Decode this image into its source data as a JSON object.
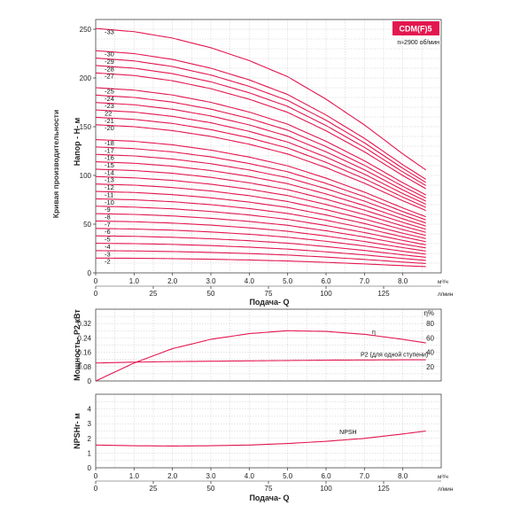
{
  "side_title": "Кривая производительности",
  "brand": "CDM(F)5",
  "speed": "n≈2900 об/мин",
  "bottom_xlabel": "Подача- Q",
  "unit_m3h": "м³/ч",
  "unit_lmin": "л/мин",
  "chart_data": [
    {
      "type": "line",
      "name": "head",
      "ylabel": "Напор - H- м",
      "xlabel": "Подача- Q",
      "xlim": [
        0,
        9
      ],
      "ylim": [
        0,
        260
      ],
      "xticks_m3h": [
        "0",
        "1.0",
        "2.0",
        "3.0",
        "4.0",
        "5.0",
        "6.0",
        "7.0",
        "8.0"
      ],
      "xticks_lmin": [
        "0",
        "25",
        "50",
        "75",
        "100",
        "125"
      ],
      "yticks": [
        "0",
        "50",
        "100",
        "150",
        "200",
        "250"
      ],
      "grid": true,
      "stage_labels": [
        "-2",
        "-3",
        "-4",
        "-5",
        "-6",
        "-7",
        "-8",
        "-9",
        "-10",
        "-11",
        "-12",
        "-13",
        "-14",
        "-15",
        "-16",
        "-17",
        "-18",
        "-20",
        "-21",
        "22",
        "-23",
        "-24",
        "-25",
        "-27",
        "-28",
        "-29",
        "-30",
        "-33"
      ],
      "stages": [
        2,
        3,
        4,
        5,
        6,
        7,
        8,
        9,
        10,
        11,
        12,
        13,
        14,
        15,
        16,
        17,
        18,
        20,
        21,
        22,
        23,
        24,
        25,
        27,
        28,
        29,
        30,
        33
      ],
      "head_per_stage": {
        "q": [
          0,
          1,
          2,
          3,
          4,
          5,
          6,
          7,
          8,
          8.6
        ],
        "h": [
          7.6,
          7.5,
          7.3,
          7.0,
          6.6,
          6.1,
          5.4,
          4.6,
          3.7,
          3.2
        ]
      }
    },
    {
      "type": "line",
      "name": "power_efficiency",
      "ylabel": "Мощность- P2 кВт",
      "y2label": "η%",
      "xlim": [
        0,
        9
      ],
      "ylim": [
        0,
        0.4
      ],
      "y2lim": [
        0,
        100
      ],
      "yticks": [
        "0",
        "0.08",
        "0.16",
        "0.24",
        "0.32"
      ],
      "y2ticks": [
        "20",
        "40",
        "60",
        "80"
      ],
      "grid": true,
      "series": [
        {
          "name": "η",
          "q": [
            0,
            1,
            2,
            3,
            4,
            5,
            6,
            7,
            8,
            8.6
          ],
          "values": [
            0,
            25,
            45,
            58,
            66,
            70,
            69,
            65,
            58,
            53
          ]
        },
        {
          "name": "P2 (для одной ступени)",
          "q": [
            0,
            1,
            2,
            3,
            4,
            5,
            6,
            7,
            8,
            8.6
          ],
          "values": [
            0.1,
            0.105,
            0.108,
            0.11,
            0.112,
            0.114,
            0.116,
            0.117,
            0.118,
            0.118
          ]
        }
      ]
    },
    {
      "type": "line",
      "name": "npsh",
      "ylabel": "NPSHr- м",
      "xlabel": "Подача- Q",
      "xlim": [
        0,
        9
      ],
      "ylim": [
        0,
        5
      ],
      "yticks": [
        "0",
        "1",
        "2",
        "3",
        "4"
      ],
      "xticks_m3h": [
        "0",
        "1.0",
        "2.0",
        "3.0",
        "4.0",
        "5.0",
        "6.0",
        "7.0",
        "8.0"
      ],
      "xticks_lmin": [
        "0",
        "25",
        "50",
        "75",
        "100",
        "125"
      ],
      "grid": true,
      "series": [
        {
          "name": "NPSH",
          "q": [
            0,
            1,
            2,
            3,
            4,
            5,
            6,
            7,
            8,
            8.6
          ],
          "values": [
            1.55,
            1.5,
            1.48,
            1.5,
            1.55,
            1.65,
            1.8,
            2.0,
            2.3,
            2.5
          ]
        }
      ]
    }
  ]
}
